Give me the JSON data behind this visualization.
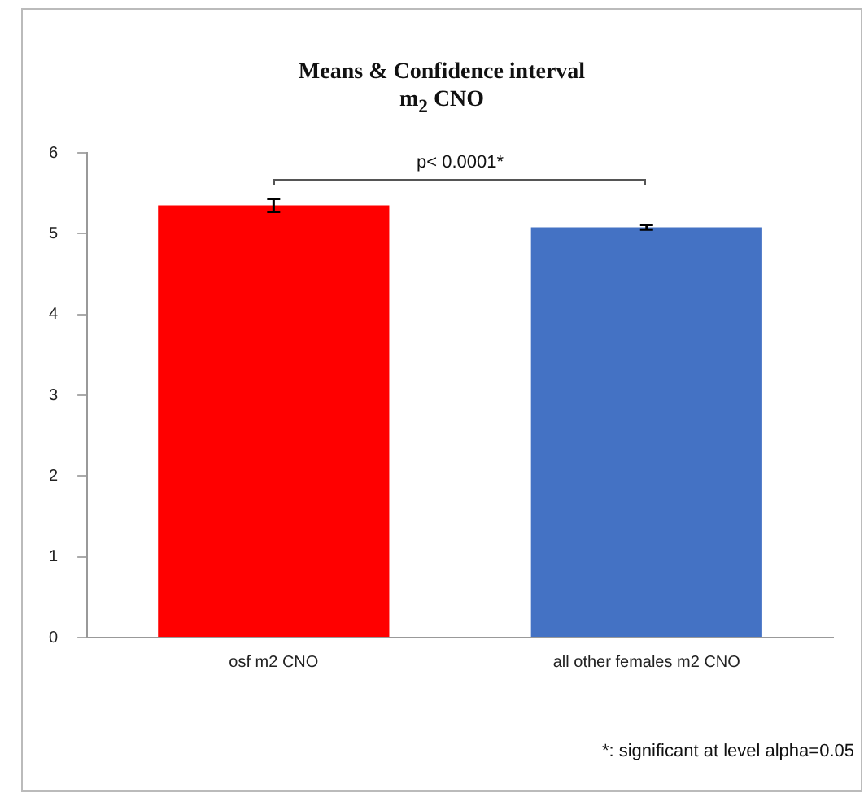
{
  "chart_data": {
    "type": "bar",
    "title": "Means & Confidence interval",
    "subtitle": "m$_{2}$ CNO",
    "categories": [
      "osf m2 CNO",
      "all other females m2 CNO"
    ],
    "values": [
      5.35,
      5.08
    ],
    "colors": [
      "#ff0000",
      "#4472c4"
    ],
    "errors": [
      0.08,
      0.03
    ],
    "ylim": [
      0,
      6
    ],
    "yticks": [
      0,
      1,
      2,
      3,
      4,
      5,
      6
    ],
    "grid": false,
    "legend": false,
    "annotations": [
      "p< 0.0001*",
      "*: significant at level alpha=0.05"
    ]
  }
}
